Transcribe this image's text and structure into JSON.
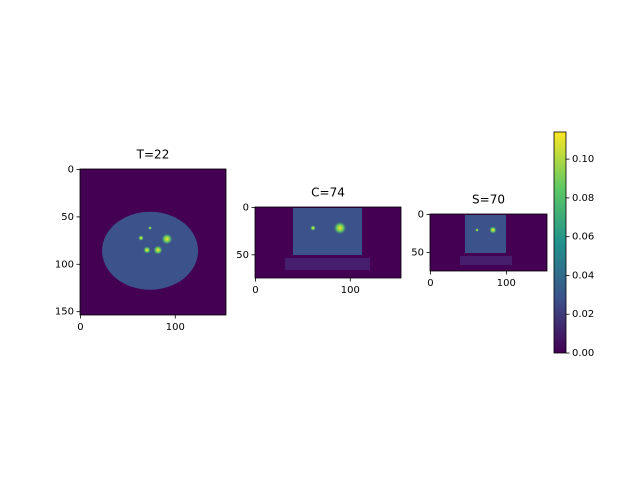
{
  "chart_data": [
    {
      "type": "image",
      "title": "T=22",
      "xlim": [
        -0.5,
        153.5
      ],
      "ylim": [
        153.5,
        -0.5
      ],
      "xticks": [
        0,
        100
      ],
      "yticks": [
        0,
        50,
        100,
        150
      ]
    },
    {
      "type": "image",
      "title": "C=74",
      "xlim": [
        -0.5,
        153.5
      ],
      "ylim": [
        74.5,
        -0.5
      ],
      "xticks": [
        0,
        100
      ],
      "yticks": [
        0,
        50
      ]
    },
    {
      "type": "image",
      "title": "S=70",
      "xlim": [
        -0.5,
        153.5
      ],
      "ylim": [
        74.5,
        -0.5
      ],
      "xticks": [
        0,
        100
      ],
      "yticks": [
        0,
        50
      ]
    },
    {
      "type": "colorbar",
      "ylim": [
        0,
        0.114
      ],
      "yticks": [
        {
          "value": 0,
          "label": "0.00"
        },
        {
          "value": 0.02,
          "label": "0.02"
        },
        {
          "value": 0.04,
          "label": "0.04"
        },
        {
          "value": 0.06,
          "label": "0.06"
        },
        {
          "value": 0.08,
          "label": "0.08"
        },
        {
          "value": 0.1,
          "label": "0.10"
        }
      ],
      "colors": [
        "#440154",
        "#3b528b",
        "#21918c",
        "#5ec962",
        "#fde725"
      ]
    }
  ]
}
